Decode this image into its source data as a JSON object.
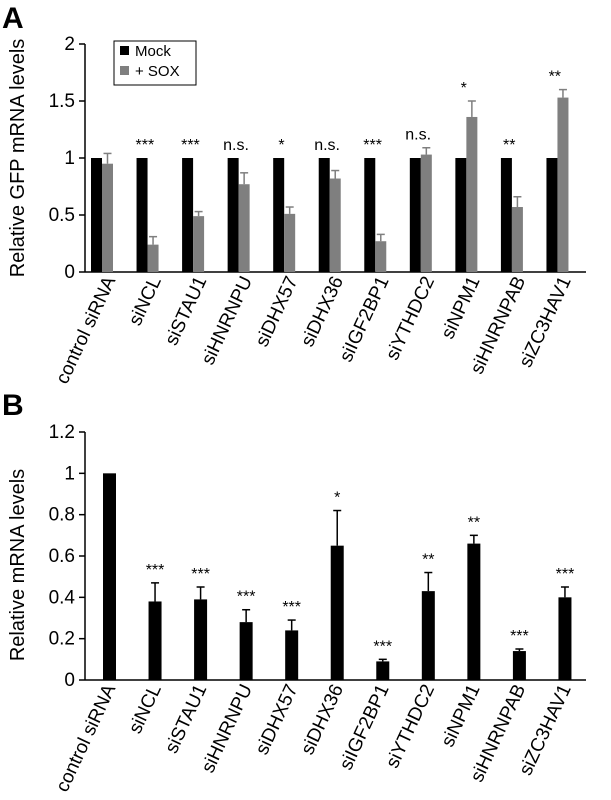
{
  "chart_data": [
    {
      "type": "bar",
      "panel": "A",
      "ylabel": "Relative GFP mRNA levels",
      "ylim": [
        0,
        2
      ],
      "yticks": [
        "0",
        "0.5",
        "1",
        "1.5",
        "2"
      ],
      "categories": [
        "control siRNA",
        "siNCL",
        "siSTAU1",
        "siHNRNPU",
        "siDHX57",
        "siDHX36",
        "siIGF2BP1",
        "siYTHDC2",
        "siNPM1",
        "siHNRNPAB",
        "siZC3HAV1"
      ],
      "series": [
        {
          "name": "Mock",
          "color": "#000000",
          "values": [
            1,
            1,
            1,
            1,
            1,
            1,
            1,
            1,
            1,
            1,
            1
          ],
          "errors": [
            0,
            0,
            0,
            0,
            0,
            0,
            0,
            0,
            0,
            0,
            0
          ]
        },
        {
          "name": "+ SOX",
          "color": "#7f7f7f",
          "values": [
            0.95,
            0.24,
            0.49,
            0.77,
            0.51,
            0.82,
            0.27,
            1.03,
            1.36,
            0.57,
            1.53
          ],
          "errors": [
            0.09,
            0.07,
            0.04,
            0.1,
            0.06,
            0.07,
            0.06,
            0.06,
            0.14,
            0.09,
            0.07
          ]
        }
      ],
      "significance": [
        "",
        "***",
        "***",
        "n.s.",
        "*",
        "n.s.",
        "***",
        "n.s.",
        "*",
        "**",
        "**"
      ],
      "legend_position": "top-left"
    },
    {
      "type": "bar",
      "panel": "B",
      "ylabel": "Relative mRNA levels",
      "ylim": [
        0,
        1.2
      ],
      "yticks": [
        "0",
        "0.2",
        "0.4",
        "0.6",
        "0.8",
        "1",
        "1.2"
      ],
      "categories": [
        "control siRNA",
        "siNCL",
        "siSTAU1",
        "siHNRNPU",
        "siDHX57",
        "siDHX36",
        "siIGF2BP1",
        "siYTHDC2",
        "siNPM1",
        "siHNRNPAB",
        "siZC3HAV1"
      ],
      "series": [
        {
          "name": "",
          "color": "#000000",
          "values": [
            1.0,
            0.38,
            0.39,
            0.28,
            0.24,
            0.65,
            0.09,
            0.43,
            0.66,
            0.14,
            0.4
          ],
          "errors": [
            0,
            0.09,
            0.06,
            0.06,
            0.05,
            0.17,
            0.01,
            0.09,
            0.04,
            0.01,
            0.05
          ]
        }
      ],
      "significance": [
        "",
        "***",
        "***",
        "***",
        "***",
        "*",
        "***",
        "**",
        "**",
        "***",
        "***"
      ]
    }
  ]
}
